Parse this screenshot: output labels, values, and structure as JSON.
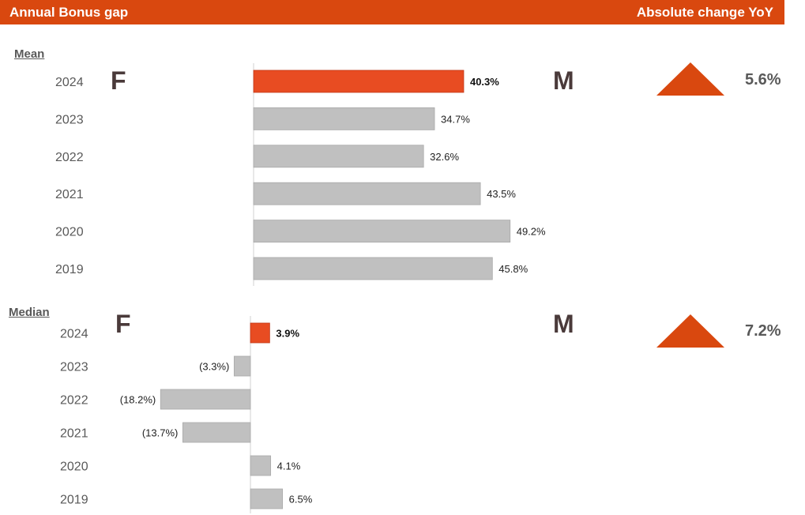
{
  "header": {
    "title": "Annual Bonus gap",
    "right_label": "Absolute change YoY"
  },
  "colors": {
    "highlight": "#e84c22",
    "bar": "#c0c0c0",
    "accent": "#d9480f"
  },
  "mean": {
    "label": "Mean",
    "female": "F",
    "male": "M",
    "yoy": "5.6%",
    "yoy_icon": "triangle-up-icon"
  },
  "median": {
    "label": "Median",
    "female": "F",
    "male": "M",
    "yoy": "7.2%",
    "yoy_icon": "triangle-up-icon"
  },
  "chart_data": [
    {
      "type": "bar",
      "orientation": "horizontal",
      "title": "Mean",
      "categories": [
        "2024",
        "2023",
        "2022",
        "2021",
        "2020",
        "2019"
      ],
      "values": [
        40.3,
        34.7,
        32.6,
        43.5,
        49.2,
        45.8
      ],
      "value_labels": [
        "40.3%",
        "34.7%",
        "32.6%",
        "43.5%",
        "49.2%",
        "45.8%"
      ],
      "highlight_index": 0
    },
    {
      "type": "bar",
      "orientation": "horizontal",
      "title": "Median",
      "categories": [
        "2024",
        "2023",
        "2022",
        "2021",
        "2020",
        "2019"
      ],
      "values": [
        3.9,
        -3.3,
        -18.2,
        -13.7,
        4.1,
        6.5
      ],
      "value_labels": [
        "3.9%",
        "(3.3%)",
        "(18.2%)",
        "(13.7%)",
        "4.1%",
        "6.5%"
      ],
      "highlight_index": 0
    }
  ]
}
